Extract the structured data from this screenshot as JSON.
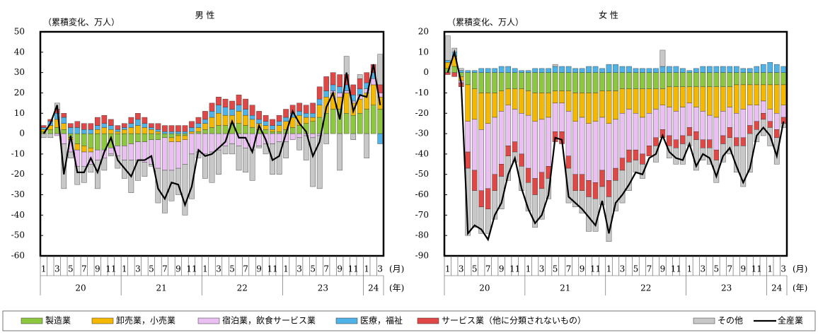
{
  "chart_data": [
    {
      "type": "stacked_bar_line",
      "title": "男 性",
      "y_label": "（累積変化、万人）",
      "categories": [
        "1",
        null,
        "3",
        null,
        "5",
        null,
        "7",
        null,
        "9",
        null,
        "11",
        null,
        "1",
        null,
        "3",
        null,
        "5",
        null,
        "7",
        null,
        "9",
        null,
        "11",
        null,
        "1",
        null,
        "3",
        null,
        "5",
        null,
        "7",
        null,
        "9",
        null,
        "11",
        null,
        "1",
        null,
        "3",
        null,
        "5",
        null,
        "7",
        null,
        "9",
        null,
        "11",
        null,
        "1",
        null,
        "3"
      ],
      "year_labels": [
        "20",
        "21",
        "22",
        "23",
        "24"
      ],
      "month_unit": "(月)",
      "year_unit": "(年)",
      "ylim": [
        -60,
        50
      ],
      "yticks": [
        -60,
        -50,
        -40,
        -30,
        -20,
        -10,
        0,
        10,
        20,
        30,
        40,
        50
      ],
      "series": [
        {
          "name": "製造業",
          "color": "#8dc63f",
          "values": [
            1,
            2,
            3,
            2,
            -2,
            -5,
            -6,
            -7,
            -8,
            -8,
            -7,
            -6,
            -6,
            -5,
            -4,
            -4,
            -3,
            -3,
            -2,
            -2,
            -1,
            -1,
            0,
            1,
            2,
            3,
            4,
            4,
            5,
            5,
            4,
            3,
            2,
            2,
            1,
            1,
            2,
            3,
            4,
            5,
            6,
            8,
            10,
            12,
            12,
            10,
            9,
            10,
            12,
            14,
            12
          ]
        },
        {
          "name": "卸売業，小売業",
          "color": "#f5b800",
          "values": [
            1,
            2,
            4,
            3,
            -1,
            -3,
            -3,
            -2,
            2,
            3,
            2,
            1,
            2,
            3,
            4,
            3,
            2,
            1,
            0,
            -2,
            -3,
            -2,
            1,
            2,
            3,
            5,
            6,
            5,
            4,
            6,
            5,
            4,
            3,
            2,
            1,
            3,
            4,
            5,
            5,
            3,
            2,
            6,
            8,
            8,
            6,
            10,
            6,
            7,
            8,
            10,
            6
          ]
        },
        {
          "name": "宿泊業，飲食サービス業",
          "color": "#eabff2",
          "values": [
            0,
            0,
            -1,
            -5,
            -6,
            -8,
            -7,
            -6,
            -5,
            -4,
            -3,
            -5,
            -7,
            -8,
            -9,
            -10,
            -12,
            -14,
            -16,
            -14,
            -13,
            -12,
            -10,
            -9,
            -10,
            -9,
            -8,
            -6,
            -5,
            -6,
            -7,
            -8,
            -6,
            -5,
            -5,
            -4,
            -4,
            -3,
            -2,
            -1,
            -2,
            -1,
            0,
            1,
            2,
            1,
            1,
            2,
            2,
            3,
            2
          ]
        },
        {
          "name": "医療，福祉",
          "color": "#4fb3e8",
          "values": [
            1,
            2,
            3,
            3,
            3,
            3,
            2,
            2,
            2,
            2,
            2,
            1,
            1,
            2,
            3,
            2,
            1,
            1,
            1,
            1,
            1,
            1,
            2,
            2,
            2,
            3,
            4,
            4,
            3,
            3,
            3,
            2,
            2,
            2,
            2,
            2,
            2,
            2,
            2,
            2,
            2,
            3,
            3,
            3,
            3,
            3,
            3,
            3,
            3,
            3,
            -5
          ]
        },
        {
          "name": "サービス業（他に分類されないもの）",
          "color": "#e04848",
          "values": [
            1,
            1,
            2,
            2,
            2,
            3,
            3,
            3,
            4,
            4,
            3,
            2,
            2,
            3,
            3,
            3,
            2,
            3,
            3,
            3,
            3,
            3,
            3,
            3,
            4,
            4,
            4,
            4,
            4,
            5,
            5,
            5,
            4,
            3,
            3,
            3,
            4,
            4,
            4,
            4,
            5,
            6,
            7,
            6,
            6,
            5,
            5,
            5,
            5,
            4,
            4
          ]
        },
        {
          "name": "その他",
          "color": "#c8c8c8",
          "values": [
            -2,
            -2,
            3,
            -22,
            -3,
            -9,
            -8,
            -4,
            -14,
            -6,
            -1,
            -6,
            -9,
            -16,
            -10,
            -7,
            -1,
            -17,
            -21,
            -15,
            -13,
            -25,
            -22,
            -3,
            -12,
            -15,
            -12,
            -4,
            -5,
            -12,
            -12,
            -15,
            -1,
            -5,
            -15,
            -16,
            -8,
            0,
            -6,
            -12,
            -24,
            -26,
            -5,
            0,
            -18,
            9,
            -3,
            2,
            -12,
            0,
            15
          ]
        },
        {
          "name": "全産業",
          "color": "#000000",
          "kind": "line",
          "values": [
            0,
            5,
            14,
            -20,
            -1,
            -19,
            -19,
            -12,
            -19,
            -9,
            -2,
            -13,
            -17,
            -21,
            -13,
            -13,
            -11,
            -27,
            -32,
            -24,
            -25,
            -35,
            -26,
            -8,
            -11,
            -10,
            -7,
            -4,
            6,
            -2,
            -2,
            -9,
            4,
            -3,
            -13,
            -11,
            0,
            11,
            5,
            1,
            -11,
            -4,
            13,
            20,
            7,
            30,
            11,
            19,
            18,
            34,
            14
          ]
        }
      ]
    },
    {
      "type": "stacked_bar_line",
      "title": "女 性",
      "y_label": "（累積変化、万人）",
      "categories": [
        "1",
        null,
        "3",
        null,
        "5",
        null,
        "7",
        null,
        "9",
        null,
        "11",
        null,
        "1",
        null,
        "3",
        null,
        "5",
        null,
        "7",
        null,
        "9",
        null,
        "11",
        null,
        "1",
        null,
        "3",
        null,
        "5",
        null,
        "7",
        null,
        "9",
        null,
        "11",
        null,
        "1",
        null,
        "3",
        null,
        "5",
        null,
        "7",
        null,
        "9",
        null,
        "11",
        null,
        "1",
        null,
        "3"
      ],
      "year_labels": [
        "20",
        "21",
        "22",
        "23",
        "24"
      ],
      "month_unit": "(月)",
      "year_unit": "(年)",
      "ylim": [
        -90,
        20
      ],
      "yticks": [
        -90,
        -80,
        -70,
        -60,
        -50,
        -40,
        -30,
        -20,
        -10,
        0,
        10,
        20
      ],
      "series": [
        {
          "name": "製造業",
          "color": "#8dc63f",
          "values": [
            2,
            3,
            -2,
            -6,
            -8,
            -10,
            -10,
            -10,
            -9,
            -8,
            -8,
            -8,
            -9,
            -10,
            -10,
            -10,
            -9,
            -9,
            -9,
            -10,
            -10,
            -10,
            -10,
            -9,
            -9,
            -9,
            -8,
            -8,
            -8,
            -8,
            -8,
            -8,
            -8,
            -7,
            -7,
            -7,
            -7,
            -7,
            -7,
            -7,
            -7,
            -7,
            -7,
            -6,
            -6,
            -6,
            -6,
            -6,
            -6,
            -6,
            -6
          ]
        },
        {
          "name": "卸売業，小売業",
          "color": "#f5b800",
          "values": [
            3,
            5,
            -2,
            -18,
            -15,
            -18,
            -15,
            -12,
            -10,
            -8,
            -10,
            -12,
            -12,
            -14,
            -13,
            -12,
            -6,
            -6,
            -10,
            -14,
            -12,
            -15,
            -14,
            -13,
            -16,
            -14,
            -12,
            -10,
            -12,
            -14,
            -12,
            -10,
            -8,
            -10,
            -12,
            -10,
            -8,
            -10,
            -12,
            -14,
            -15,
            -12,
            -10,
            -14,
            -12,
            -10,
            -10,
            -8,
            -12,
            -14,
            -10
          ]
        },
        {
          "name": "宿泊業，飲食サービス業",
          "color": "#eabff2",
          "values": [
            0,
            0,
            -1,
            -15,
            -25,
            -30,
            -32,
            -28,
            -26,
            -20,
            -16,
            -20,
            -26,
            -28,
            -26,
            -24,
            -14,
            -14,
            -22,
            -26,
            -28,
            -28,
            -30,
            -26,
            -28,
            -24,
            -22,
            -20,
            -18,
            -18,
            -16,
            -14,
            -12,
            -14,
            -14,
            -14,
            -12,
            -12,
            -14,
            -12,
            -16,
            -12,
            -10,
            -12,
            -14,
            -10,
            -8,
            -6,
            -6,
            -8,
            -6
          ]
        },
        {
          "name": "医療，福祉",
          "color": "#4fb3e8",
          "values": [
            1,
            2,
            1,
            1,
            1,
            2,
            2,
            2,
            3,
            3,
            2,
            1,
            1,
            2,
            2,
            2,
            3,
            3,
            3,
            2,
            2,
            3,
            3,
            2,
            4,
            4,
            3,
            3,
            2,
            2,
            2,
            2,
            3,
            3,
            3,
            2,
            1,
            2,
            3,
            3,
            3,
            3,
            3,
            3,
            2,
            2,
            3,
            4,
            5,
            4,
            3
          ]
        },
        {
          "name": "サービス業（他に分類されないもの）",
          "color": "#e04848",
          "values": [
            -1,
            -2,
            -2,
            -8,
            -10,
            -8,
            -10,
            -8,
            -6,
            -5,
            -5,
            -6,
            -7,
            -8,
            -8,
            -6,
            -5,
            -6,
            -6,
            -8,
            -8,
            -8,
            -8,
            -8,
            -8,
            -6,
            -6,
            -6,
            -5,
            -5,
            -5,
            -4,
            -4,
            -5,
            -4,
            -4,
            -4,
            -4,
            -4,
            -4,
            -5,
            -4,
            -5,
            -4,
            -4,
            -4,
            -4,
            -3,
            -3,
            -4,
            -3
          ]
        },
        {
          "name": "その他",
          "color": "#c8c8c8",
          "values": [
            12,
            2,
            1,
            -33,
            -18,
            -13,
            -12,
            -14,
            -16,
            -12,
            -5,
            -12,
            -14,
            -16,
            -15,
            -10,
            1,
            0,
            -17,
            -8,
            -11,
            -17,
            -16,
            -9,
            -22,
            -15,
            -16,
            -14,
            -6,
            -7,
            0,
            -8,
            8,
            -6,
            -8,
            -10,
            -5,
            -15,
            -6,
            -8,
            -11,
            -9,
            -8,
            -13,
            -20,
            -19,
            -6,
            -8,
            -9,
            -13,
            -2
          ]
        },
        {
          "name": "全産業",
          "color": "#000000",
          "kind": "line",
          "values": [
            0,
            10,
            -5,
            -79,
            -75,
            -77,
            -82,
            -70,
            -64,
            -50,
            -42,
            -57,
            -67,
            -74,
            -70,
            -60,
            -32,
            -33,
            -61,
            -64,
            -67,
            -71,
            -75,
            -63,
            -79,
            -64,
            -60,
            -55,
            -49,
            -50,
            -42,
            -40,
            -31,
            -39,
            -42,
            -43,
            -35,
            -46,
            -40,
            -42,
            -51,
            -41,
            -37,
            -46,
            -54,
            -47,
            -31,
            -27,
            -31,
            -41,
            -24
          ]
        }
      ]
    }
  ]
}
